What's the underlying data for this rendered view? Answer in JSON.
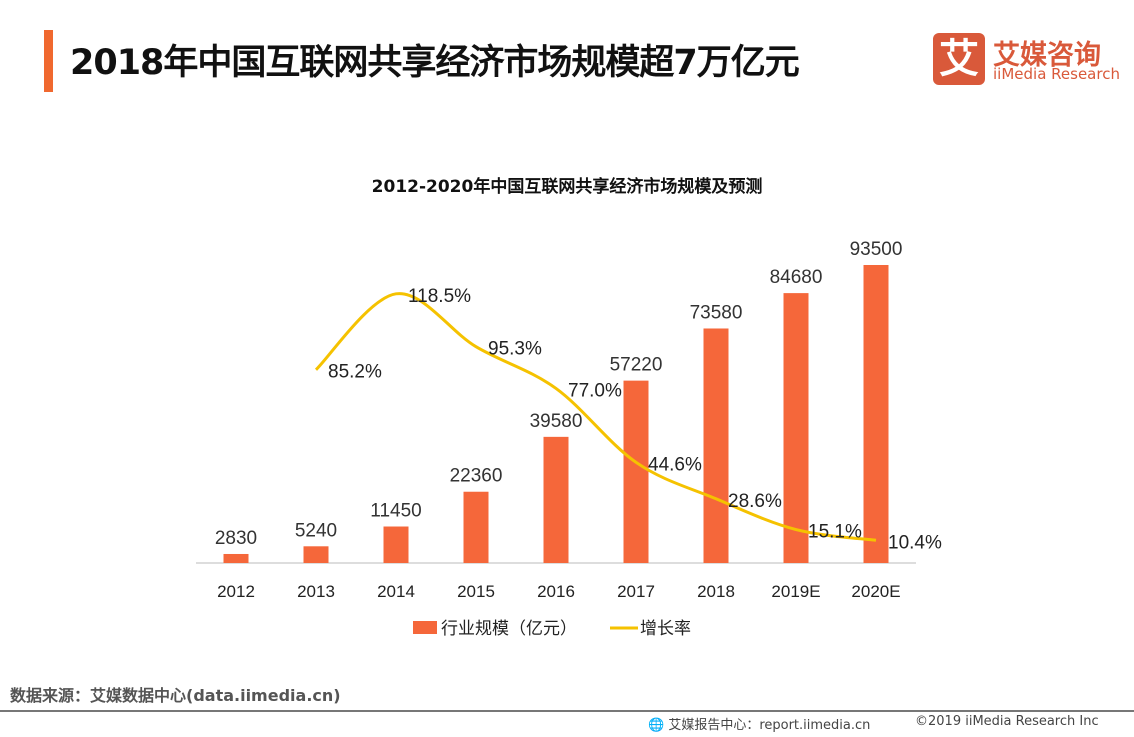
{
  "header": {
    "title": "2018年中国互联网共享经济市场规模超7万亿元"
  },
  "logo": {
    "mark": "艾",
    "cn": "艾媒咨询",
    "en": "iiMedia Research"
  },
  "source": "数据来源：艾媒数据中心(data.iimedia.cn)",
  "footer": {
    "report": "艾媒报告中心：report.iimedia.cn",
    "copyright": "©2019  iiMedia Research  Inc"
  },
  "colors": {
    "bar": "#f5673a",
    "line": "#f5c200",
    "accent": "#f0682f"
  },
  "chart_data": {
    "type": "bar+line",
    "title": "2012-2020年中国互联网共享经济市场规模及预测",
    "categories": [
      "2012",
      "2013",
      "2014",
      "2015",
      "2016",
      "2017",
      "2018",
      "2019E",
      "2020E"
    ],
    "series": [
      {
        "name": "行业规模（亿元）",
        "type": "bar",
        "values": [
          2830,
          5240,
          11450,
          22360,
          39580,
          57220,
          73580,
          84680,
          93500
        ],
        "labels": [
          "2830",
          "5240",
          "11450",
          "22360",
          "39580",
          "57220",
          "73580",
          "84680",
          "93500"
        ]
      },
      {
        "name": "增长率",
        "type": "line",
        "values": [
          null,
          85.2,
          118.5,
          95.3,
          77.0,
          44.6,
          28.6,
          15.1,
          10.4
        ],
        "labels": [
          "",
          "85.2%",
          "118.5%",
          "95.3%",
          "77.0%",
          "44.6%",
          "28.6%",
          "15.1%",
          "10.4%"
        ]
      }
    ],
    "legend": "bottom",
    "grid": false
  }
}
